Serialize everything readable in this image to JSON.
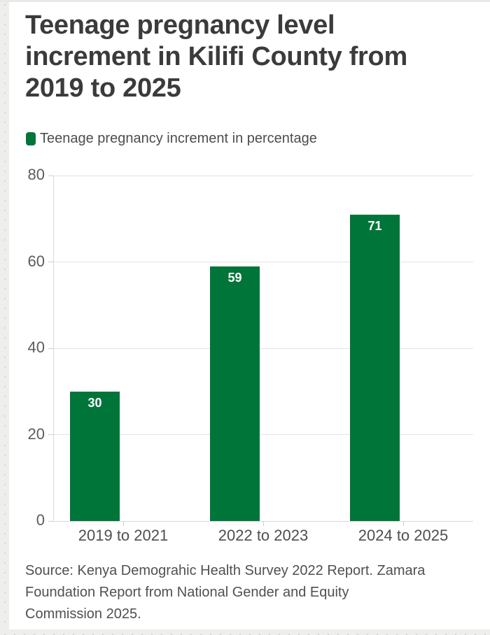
{
  "header": {
    "title_full": "Teenage pregnancy level increment in Kilifi County from 2019 to 2025",
    "title_lines": [
      "Teenage pregnancy level",
      "increment in Kilifi County from",
      "2019 to 2025"
    ]
  },
  "legend": {
    "label": "Teenage pregnancy increment in percentage",
    "swatch_color": "#00753a"
  },
  "chart_data": {
    "type": "bar",
    "title": "Teenage pregnancy level increment in Kilifi County from 2019 to 2025",
    "categories": [
      "2019 to 2021",
      "2022 to 2023",
      "2024 to 2025"
    ],
    "series": [
      {
        "name": "Teenage pregnancy increment in percentage",
        "values": [
          30,
          59,
          71
        ]
      }
    ],
    "values": [
      30,
      59,
      71
    ],
    "xlabel": "",
    "ylabel": "",
    "ylim": [
      0,
      80
    ],
    "yticks": [
      0,
      20,
      40,
      60,
      80
    ],
    "grid": true,
    "legend_position": "top-left",
    "bar_color": "#00753a",
    "value_label_color": "#ffffff",
    "value_label_position": "inside-top"
  },
  "footer": {
    "source_full": "Source: Kenya Demograhic Health Survey 2022 Report. Zamara Foundation Report from National Gender and Equity Commission 2025.",
    "source_lines": [
      "Source: Kenya Demograhic Health Survey 2022 Report. Zamara",
      "Foundation Report from National Gender and Equity",
      "Commission 2025."
    ]
  },
  "colors": {
    "accent_green": "#00753a",
    "title_text": "#3b3b3b",
    "body_text": "#505050",
    "axis_text": "#5c5c5c",
    "gridline": "#e4e4e4"
  }
}
